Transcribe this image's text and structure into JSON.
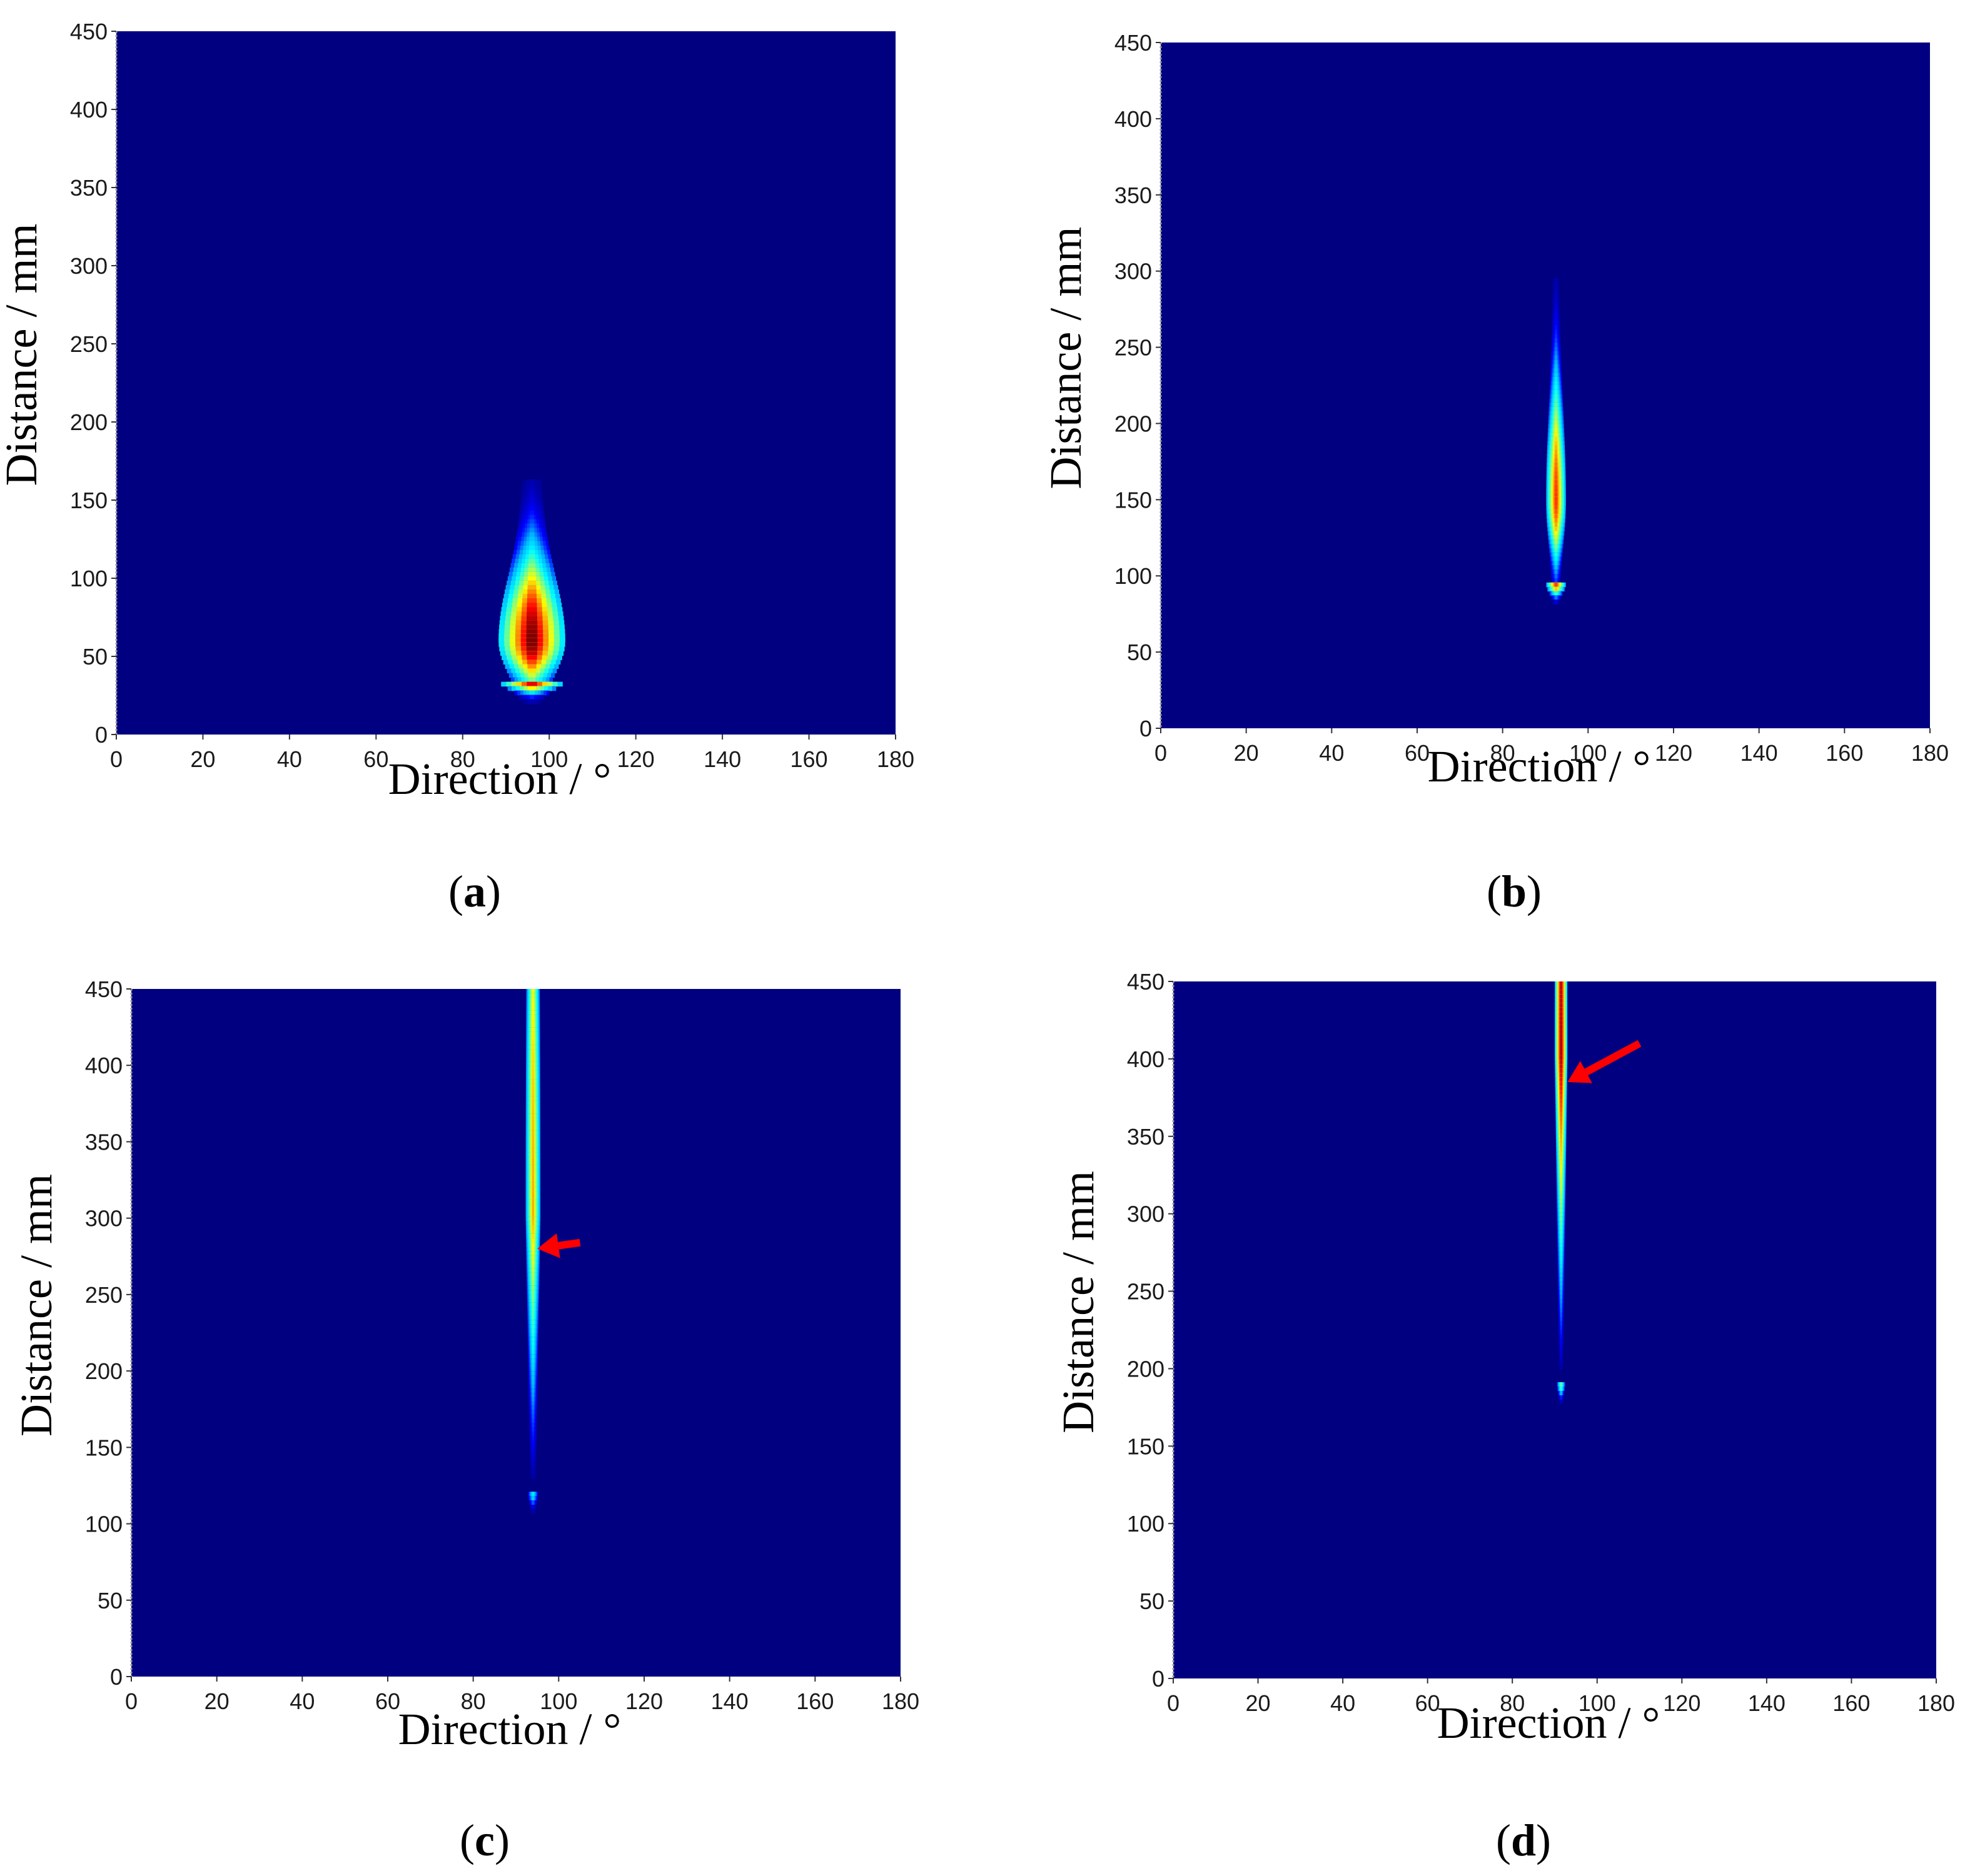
{
  "figure": {
    "background_color": "#000080",
    "colormap": [
      "#000080",
      "#0000ff",
      "#00b0ff",
      "#00ffff",
      "#80ff80",
      "#ffff00",
      "#ff8000",
      "#ff0000",
      "#800000"
    ],
    "arrow_color": "#ff0000"
  },
  "chart_data": [
    {
      "id": "a",
      "type": "heatmap",
      "caption_open": "(",
      "caption_letter": "a",
      "caption_close": ")",
      "xlabel": "Direction / °",
      "ylabel": "Distance / mm",
      "xlim": [
        0,
        180
      ],
      "ylim": [
        0,
        450
      ],
      "xticks": [
        0,
        20,
        40,
        60,
        80,
        100,
        120,
        140,
        160,
        180
      ],
      "yticks": [
        0,
        50,
        100,
        150,
        200,
        250,
        300,
        350,
        400,
        450
      ],
      "hotspots": [
        {
          "center_direction": 96,
          "center_distance": 60,
          "direction_spread": 3.5,
          "distance_spread": 55,
          "peak": 1.0,
          "shape": "plume",
          "start_distance": 35
        }
      ],
      "arrow": null
    },
    {
      "id": "b",
      "type": "heatmap",
      "caption_open": "(",
      "caption_letter": "b",
      "caption_close": ")",
      "xlabel": "Direction / °",
      "ylabel": "Distance / mm",
      "xlim": [
        0,
        180
      ],
      "ylim": [
        0,
        450
      ],
      "xticks": [
        0,
        20,
        40,
        60,
        80,
        100,
        120,
        140,
        160,
        180
      ],
      "yticks": [
        0,
        50,
        100,
        150,
        200,
        250,
        300,
        350,
        400,
        450
      ],
      "hotspots": [
        {
          "center_direction": 92.5,
          "center_distance": 150,
          "direction_spread": 1.2,
          "distance_spread": 80,
          "peak": 0.82,
          "shape": "plume",
          "start_distance": 95
        }
      ],
      "arrow": null
    },
    {
      "id": "c",
      "type": "heatmap",
      "caption_open": "(",
      "caption_letter": "c",
      "caption_close": ")",
      "xlabel": "Direction / °",
      "ylabel": "Distance / mm",
      "xlim": [
        0,
        180
      ],
      "ylim": [
        0,
        450
      ],
      "xticks": [
        0,
        20,
        40,
        60,
        80,
        100,
        120,
        140,
        160,
        180
      ],
      "yticks": [
        0,
        50,
        100,
        150,
        200,
        250,
        300,
        350,
        400,
        450
      ],
      "hotspots": [
        {
          "center_direction": 94,
          "center_distance": 300,
          "direction_spread": 1.0,
          "distance_spread": 200,
          "peak": 0.7,
          "shape": "line",
          "start_distance": 120
        }
      ],
      "arrow": {
        "target_direction": 95,
        "target_distance": 280,
        "tail_direction": 105,
        "tail_distance": 284
      }
    },
    {
      "id": "d",
      "type": "heatmap",
      "caption_open": "(",
      "caption_letter": "d",
      "caption_close": ")",
      "xlabel": "Direction / °",
      "ylabel": "Distance / mm",
      "xlim": [
        0,
        180
      ],
      "ylim": [
        0,
        450
      ],
      "xticks": [
        0,
        20,
        40,
        60,
        80,
        100,
        120,
        140,
        160,
        180
      ],
      "yticks": [
        0,
        50,
        100,
        150,
        200,
        250,
        300,
        350,
        400,
        450
      ],
      "hotspots": [
        {
          "center_direction": 91.5,
          "center_distance": 400,
          "direction_spread": 0.7,
          "distance_spread": 200,
          "peak": 0.95,
          "shape": "line",
          "start_distance": 190
        }
      ],
      "arrow": {
        "target_direction": 93,
        "target_distance": 385,
        "tail_direction": 110,
        "tail_distance": 410
      }
    }
  ]
}
